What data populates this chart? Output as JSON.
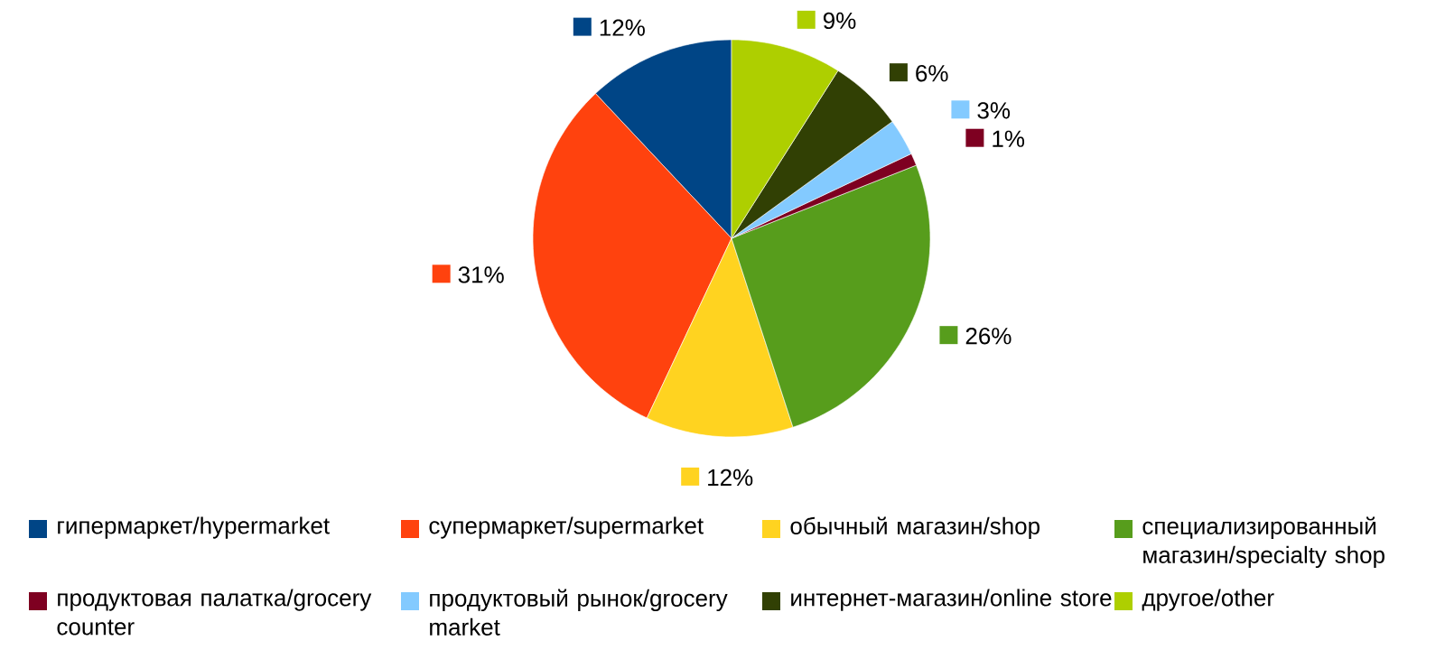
{
  "chart_data": {
    "type": "pie",
    "categories": [
      "гипермаркет/hypermarket",
      "супермаркет/supermarket",
      "обычный магазин/shop",
      "специализированный магазин/specialty shop",
      "продуктовая палатка/grocery counter",
      "продуктовый рынок/grocery market",
      "интернет-магазин/online store",
      "другое/other"
    ],
    "values": [
      12,
      31,
      12,
      26,
      1,
      3,
      6,
      9
    ],
    "colors": [
      "#004586",
      "#ff420e",
      "#ffd320",
      "#579d1c",
      "#7e0021",
      "#83caff",
      "#314004",
      "#aecf00"
    ],
    "value_labels": [
      "12%",
      "31%",
      "12%",
      "26%",
      "1%",
      "3%",
      "6%",
      "9%"
    ],
    "legend": "bottom"
  }
}
